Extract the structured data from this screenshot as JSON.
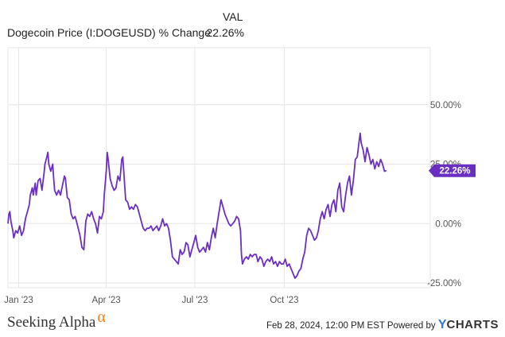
{
  "legend": {
    "column_header": "VAL",
    "series_name": "Dogecoin Price (I:DOGEUSD) % Change",
    "series_value": "22.26%"
  },
  "footer": {
    "brand": "Seeking Alpha",
    "brand_mark": "α",
    "timestamp": "Feb 28, 2024, 12:00 PM EST",
    "powered_by": "Powered by",
    "provider_y": "Y",
    "provider_rest": "CHARTS"
  },
  "colors": {
    "series": "#6a2fc2",
    "grid": "#e6e6e6",
    "axis_text": "#555555",
    "callout_text": "#ffffff"
  },
  "chart_data": {
    "type": "line",
    "title": "",
    "xlabel": "",
    "ylabel": "",
    "x_ticks": [
      {
        "label": "Jan '23",
        "date": "2023-01-01"
      },
      {
        "label": "Apr '23",
        "date": "2023-04-01"
      },
      {
        "label": "Jul '23",
        "date": "2023-07-01"
      },
      {
        "label": "Oct '23",
        "date": "2023-10-01"
      }
    ],
    "y_ticks": [
      {
        "label": "50.00%",
        "value": 50
      },
      {
        "label": "25.00%",
        "value": 25
      },
      {
        "label": "0.00%",
        "value": 0
      },
      {
        "label": "-25.00%",
        "value": -25
      }
    ],
    "xlim": [
      "2022-12-21",
      "2024-02-28"
    ],
    "ylim": [
      -27,
      74
    ],
    "grid": true,
    "last_value_label": "22.26%",
    "series": [
      {
        "name": "Dogecoin Price (I:DOGEUSD) % Change",
        "points": [
          [
            "2022-12-21",
            0
          ],
          [
            "2022-12-22",
            4
          ],
          [
            "2022-12-23",
            5
          ],
          [
            "2022-12-24",
            1
          ],
          [
            "2022-12-26",
            -3
          ],
          [
            "2022-12-27",
            -6
          ],
          [
            "2022-12-29",
            -3
          ],
          [
            "2022-12-31",
            -4
          ],
          [
            "2023-01-02",
            -1
          ],
          [
            "2023-01-04",
            -5
          ],
          [
            "2023-01-06",
            -3
          ],
          [
            "2023-01-08",
            2
          ],
          [
            "2023-01-10",
            5
          ],
          [
            "2023-01-12",
            8
          ],
          [
            "2023-01-13",
            12
          ],
          [
            "2023-01-15",
            15
          ],
          [
            "2023-01-16",
            12
          ],
          [
            "2023-01-18",
            17
          ],
          [
            "2023-01-19",
            12
          ],
          [
            "2023-01-21",
            18
          ],
          [
            "2023-01-23",
            19
          ],
          [
            "2023-01-25",
            14
          ],
          [
            "2023-01-27",
            21
          ],
          [
            "2023-01-28",
            25
          ],
          [
            "2023-01-30",
            28
          ],
          [
            "2023-01-31",
            30
          ],
          [
            "2023-02-01",
            25
          ],
          [
            "2023-02-03",
            22
          ],
          [
            "2023-02-05",
            25
          ],
          [
            "2023-02-06",
            19
          ],
          [
            "2023-02-07",
            14
          ],
          [
            "2023-02-09",
            12
          ],
          [
            "2023-02-11",
            14
          ],
          [
            "2023-02-13",
            12
          ],
          [
            "2023-02-15",
            16
          ],
          [
            "2023-02-17",
            20
          ],
          [
            "2023-02-18",
            19
          ],
          [
            "2023-02-20",
            11
          ],
          [
            "2023-02-22",
            10
          ],
          [
            "2023-02-24",
            4
          ],
          [
            "2023-02-26",
            2
          ],
          [
            "2023-02-28",
            3
          ],
          [
            "2023-03-02",
            0
          ],
          [
            "2023-03-05",
            -5
          ],
          [
            "2023-03-07",
            -10
          ],
          [
            "2023-03-09",
            -11
          ],
          [
            "2023-03-11",
            1
          ],
          [
            "2023-03-13",
            4
          ],
          [
            "2023-03-15",
            3
          ],
          [
            "2023-03-17",
            5
          ],
          [
            "2023-03-19",
            2
          ],
          [
            "2023-03-21",
            0
          ],
          [
            "2023-03-23",
            -4
          ],
          [
            "2023-03-25",
            3
          ],
          [
            "2023-03-27",
            2
          ],
          [
            "2023-03-29",
            5
          ],
          [
            "2023-03-30",
            12
          ],
          [
            "2023-04-01",
            22
          ],
          [
            "2023-04-02",
            30
          ],
          [
            "2023-04-03",
            27
          ],
          [
            "2023-04-05",
            19
          ],
          [
            "2023-04-07",
            16
          ],
          [
            "2023-04-09",
            14
          ],
          [
            "2023-04-11",
            15
          ],
          [
            "2023-04-13",
            20
          ],
          [
            "2023-04-15",
            18
          ],
          [
            "2023-04-17",
            27
          ],
          [
            "2023-04-18",
            28
          ],
          [
            "2023-04-19",
            22
          ],
          [
            "2023-04-21",
            10
          ],
          [
            "2023-04-23",
            9
          ],
          [
            "2023-04-25",
            6
          ],
          [
            "2023-04-27",
            7
          ],
          [
            "2023-04-29",
            6
          ],
          [
            "2023-05-01",
            8
          ],
          [
            "2023-05-03",
            7
          ],
          [
            "2023-05-05",
            4
          ],
          [
            "2023-05-07",
            1
          ],
          [
            "2023-05-09",
            -2
          ],
          [
            "2023-05-11",
            -3
          ],
          [
            "2023-05-13",
            -2
          ],
          [
            "2023-05-15",
            -2
          ],
          [
            "2023-05-17",
            -1
          ],
          [
            "2023-05-19",
            -3
          ],
          [
            "2023-05-21",
            -2
          ],
          [
            "2023-05-23",
            -1
          ],
          [
            "2023-05-25",
            -3
          ],
          [
            "2023-05-27",
            -1
          ],
          [
            "2023-05-29",
            2
          ],
          [
            "2023-05-31",
            -1
          ],
          [
            "2023-06-02",
            0
          ],
          [
            "2023-06-04",
            -2
          ],
          [
            "2023-06-06",
            -7
          ],
          [
            "2023-06-08",
            -14
          ],
          [
            "2023-06-10",
            -15
          ],
          [
            "2023-06-12",
            -16
          ],
          [
            "2023-06-14",
            -17
          ],
          [
            "2023-06-16",
            -11
          ],
          [
            "2023-06-18",
            -13
          ],
          [
            "2023-06-20",
            -12
          ],
          [
            "2023-06-22",
            -8
          ],
          [
            "2023-06-24",
            -9
          ],
          [
            "2023-06-26",
            -14
          ],
          [
            "2023-06-28",
            -11
          ],
          [
            "2023-06-30",
            -8
          ],
          [
            "2023-07-02",
            -5
          ],
          [
            "2023-07-04",
            -10
          ],
          [
            "2023-07-06",
            -12
          ],
          [
            "2023-07-08",
            -11
          ],
          [
            "2023-07-10",
            -10
          ],
          [
            "2023-07-12",
            -12
          ],
          [
            "2023-07-14",
            -8
          ],
          [
            "2023-07-16",
            -11
          ],
          [
            "2023-07-18",
            -6
          ],
          [
            "2023-07-20",
            -2
          ],
          [
            "2023-07-22",
            -6
          ],
          [
            "2023-07-24",
            0
          ],
          [
            "2023-07-26",
            5
          ],
          [
            "2023-07-28",
            10
          ],
          [
            "2023-07-30",
            7
          ],
          [
            "2023-08-01",
            4
          ],
          [
            "2023-08-03",
            2
          ],
          [
            "2023-08-05",
            0
          ],
          [
            "2023-08-07",
            -1
          ],
          [
            "2023-08-09",
            0
          ],
          [
            "2023-08-11",
            1
          ],
          [
            "2023-08-13",
            3
          ],
          [
            "2023-08-15",
            2
          ],
          [
            "2023-08-17",
            -3
          ],
          [
            "2023-08-18",
            -13
          ],
          [
            "2023-08-19",
            -17
          ],
          [
            "2023-08-21",
            -15
          ],
          [
            "2023-08-23",
            -14
          ],
          [
            "2023-08-25",
            -15
          ],
          [
            "2023-08-27",
            -13
          ],
          [
            "2023-08-29",
            -14
          ],
          [
            "2023-08-31",
            -13
          ],
          [
            "2023-09-02",
            -13
          ],
          [
            "2023-09-04",
            -16
          ],
          [
            "2023-09-06",
            -14
          ],
          [
            "2023-09-08",
            -15
          ],
          [
            "2023-09-10",
            -18
          ],
          [
            "2023-09-12",
            -16
          ],
          [
            "2023-09-14",
            -15
          ],
          [
            "2023-09-16",
            -16
          ],
          [
            "2023-09-18",
            -14
          ],
          [
            "2023-09-20",
            -17
          ],
          [
            "2023-09-22",
            -16
          ],
          [
            "2023-09-24",
            -18
          ],
          [
            "2023-09-26",
            -16
          ],
          [
            "2023-09-28",
            -17
          ],
          [
            "2023-09-30",
            -17
          ],
          [
            "2023-10-02",
            -15
          ],
          [
            "2023-10-04",
            -18
          ],
          [
            "2023-10-06",
            -17
          ],
          [
            "2023-10-08",
            -19
          ],
          [
            "2023-10-10",
            -21
          ],
          [
            "2023-10-12",
            -23
          ],
          [
            "2023-10-14",
            -22
          ],
          [
            "2023-10-16",
            -20
          ],
          [
            "2023-10-18",
            -19
          ],
          [
            "2023-10-20",
            -15
          ],
          [
            "2023-10-22",
            -12
          ],
          [
            "2023-10-24",
            -5
          ],
          [
            "2023-10-26",
            -2
          ],
          [
            "2023-10-28",
            -3
          ],
          [
            "2023-10-30",
            -5
          ],
          [
            "2023-11-01",
            -7
          ],
          [
            "2023-11-03",
            -6
          ],
          [
            "2023-11-05",
            -3
          ],
          [
            "2023-11-07",
            2
          ],
          [
            "2023-11-09",
            5
          ],
          [
            "2023-11-11",
            2
          ],
          [
            "2023-11-13",
            6
          ],
          [
            "2023-11-15",
            8
          ],
          [
            "2023-11-17",
            3
          ],
          [
            "2023-11-19",
            8
          ],
          [
            "2023-11-21",
            10
          ],
          [
            "2023-11-23",
            5
          ],
          [
            "2023-11-25",
            14
          ],
          [
            "2023-11-27",
            17
          ],
          [
            "2023-11-29",
            7
          ],
          [
            "2023-12-01",
            5
          ],
          [
            "2023-12-03",
            12
          ],
          [
            "2023-12-05",
            17
          ],
          [
            "2023-12-07",
            20
          ],
          [
            "2023-12-09",
            12
          ],
          [
            "2023-12-11",
            18
          ],
          [
            "2023-12-13",
            27
          ],
          [
            "2023-12-15",
            28
          ],
          [
            "2023-12-17",
            35
          ],
          [
            "2023-12-18",
            38
          ],
          [
            "2023-12-19",
            34
          ],
          [
            "2023-12-21",
            31
          ],
          [
            "2023-12-23",
            26
          ],
          [
            "2023-12-25",
            32
          ],
          [
            "2023-12-27",
            29
          ],
          [
            "2023-12-29",
            25
          ],
          [
            "2023-12-31",
            27
          ],
          [
            "2024-01-02",
            23
          ],
          [
            "2024-01-04",
            26
          ],
          [
            "2024-01-06",
            24
          ],
          [
            "2024-01-08",
            27
          ],
          [
            "2024-01-10",
            25
          ],
          [
            "2024-01-12",
            22
          ],
          [
            "2024-01-14",
            22.26
          ]
        ]
      }
    ]
  }
}
